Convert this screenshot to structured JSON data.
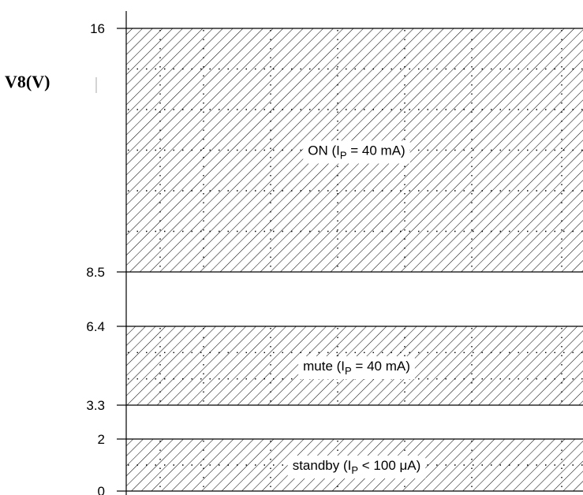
{
  "axis": {
    "title": "V8(V)",
    "ticks": [
      {
        "value": 16,
        "label": "16"
      },
      {
        "value": 8.5,
        "label": "8.5"
      },
      {
        "value": 6.4,
        "label": "6.4"
      },
      {
        "value": 3.3,
        "label": "3.3"
      },
      {
        "value": 2,
        "label": "2"
      },
      {
        "value": 0,
        "label": "0"
      }
    ]
  },
  "regions": [
    {
      "name": "on",
      "from": 8.5,
      "to": 16,
      "label_main": "ON (I",
      "label_sub": "P",
      "label_rest": " = 40 mA)"
    },
    {
      "name": "mute",
      "from": 3.3,
      "to": 6.4,
      "label_main": "mute (I",
      "label_sub": "P",
      "label_rest": " = 40 mA)"
    },
    {
      "name": "standby",
      "from": 0,
      "to": 2,
      "label_main": "standby (I",
      "label_sub": "P",
      "label_rest": " < 100 μA)"
    }
  ]
}
